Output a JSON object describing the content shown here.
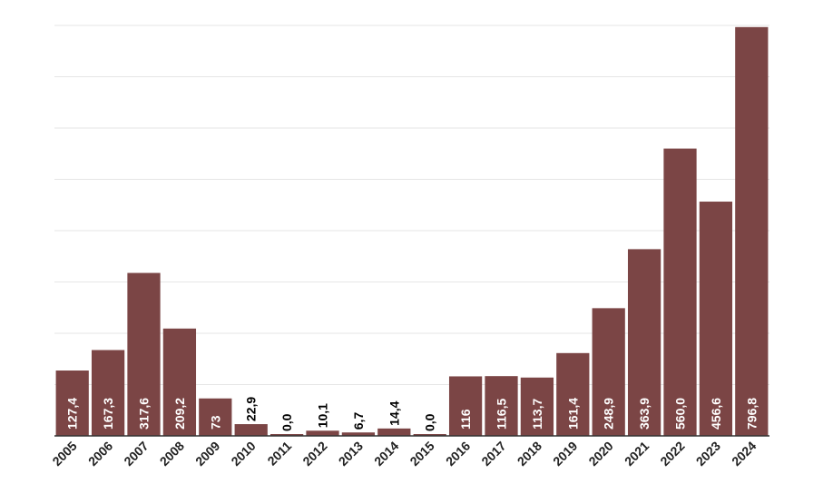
{
  "chart_data": {
    "type": "bar",
    "categories": [
      "2005",
      "2006",
      "2007",
      "2008",
      "2009",
      "2010",
      "2011",
      "2012",
      "2013",
      "2014",
      "2015",
      "2016",
      "2017",
      "2018",
      "2019",
      "2020",
      "2021",
      "2022",
      "2023",
      "2024"
    ],
    "values": [
      127.4,
      167.3,
      317.6,
      209.2,
      73,
      22.9,
      0.0,
      10.1,
      6.7,
      14.4,
      0.0,
      116,
      116.5,
      113.7,
      161.4,
      248.9,
      363.9,
      560.0,
      456.6,
      796.8
    ],
    "value_labels": [
      "127,4",
      "167,3",
      "317,6",
      "209,2",
      "73",
      "22,9",
      "0,0",
      "10,1",
      "6,7",
      "14,4",
      "0,0",
      "116",
      "116,5",
      "113,7",
      "161,4",
      "248,9",
      "363,9",
      "560,0",
      "456,6",
      "796,8"
    ],
    "ylim": [
      0,
      800
    ],
    "grid": true,
    "bar_color": "#7b4545",
    "label_color_inside": "#ffffff",
    "label_color_outside": "#000000"
  }
}
